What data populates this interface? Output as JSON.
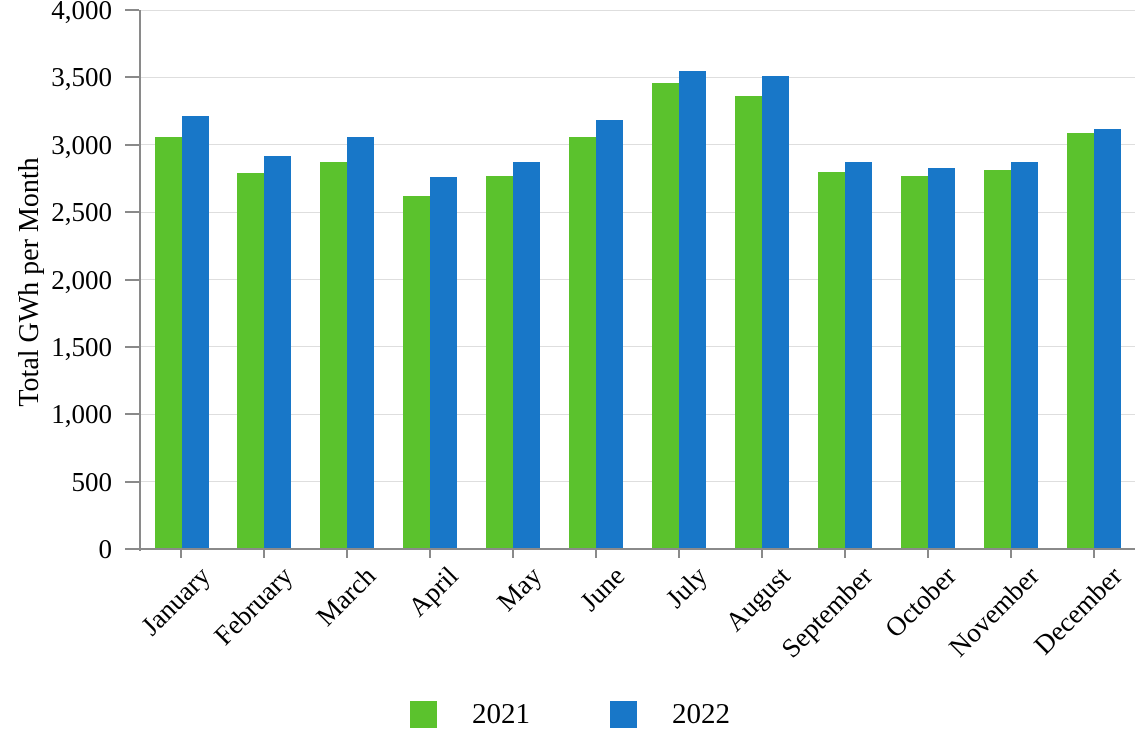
{
  "chart_data": {
    "type": "bar",
    "title": "",
    "xlabel": "",
    "ylabel": "Total GWh per Month",
    "categories": [
      "January",
      "February",
      "March",
      "April",
      "May",
      "June",
      "July",
      "August",
      "September",
      "October",
      "November",
      "December"
    ],
    "series": [
      {
        "name": "2021",
        "color": "#5bc22d",
        "values": [
          3060,
          2790,
          2870,
          2620,
          2770,
          3060,
          3460,
          3360,
          2800,
          2770,
          2810,
          3090
        ]
      },
      {
        "name": "2022",
        "color": "#1877c8",
        "values": [
          3210,
          2920,
          3060,
          2760,
          2870,
          3180,
          3550,
          3510,
          2870,
          2830,
          2870,
          3120
        ]
      }
    ],
    "ylim": [
      0,
      4000
    ],
    "ytick_step": 500,
    "ytick_labels": [
      "0",
      "500",
      "1,000",
      "1,500",
      "2,000",
      "2,500",
      "3,000",
      "3,500",
      "4,000"
    ],
    "grid": "horizontal",
    "legend_position": "bottom"
  },
  "colors": {
    "background": "#ffffff",
    "gridline": "#dedede",
    "axis": "#8a8a8a",
    "text": "#000000",
    "series_2021": "#5bc22d",
    "series_2022": "#1877c8"
  }
}
